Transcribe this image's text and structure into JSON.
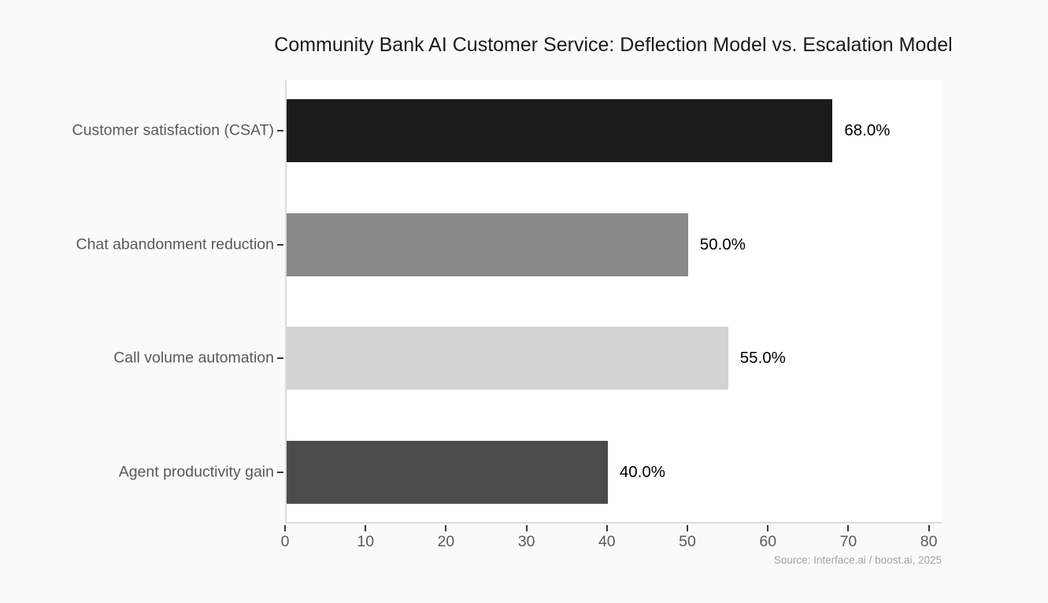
{
  "chart_data": {
    "type": "bar",
    "orientation": "horizontal",
    "title": "Community Bank AI Customer Service: Deflection Model vs. Escalation Model",
    "categories": [
      "Customer satisfaction (CSAT)",
      "Chat abandonment reduction",
      "Call volume automation",
      "Agent productivity gain"
    ],
    "values": [
      68.0,
      50.0,
      55.0,
      40.0
    ],
    "value_labels": [
      "68.0%",
      "50.0%",
      "55.0%",
      "40.0%"
    ],
    "bar_colors": [
      "#1b1b1b",
      "#898989",
      "#d3d3d3",
      "#4b4b4b"
    ],
    "xlabel": "",
    "ylabel": "",
    "xlim": [
      0,
      81.6
    ],
    "x_ticks": [
      0,
      10,
      20,
      30,
      40,
      50,
      60,
      70,
      80
    ],
    "grid": false,
    "legend": null,
    "source": "Source: Interface.ai / boost.ai, 2025"
  },
  "colors": {
    "page_background": "#fafafa",
    "plot_background": "#ffffff",
    "spine": "#dcdcdc",
    "tick_mark": "#3a3a3a",
    "axis_label_text": "#595959",
    "value_label_text": "#000000",
    "title_text": "#1a1a1a",
    "source_text": "#a3a3a3"
  }
}
